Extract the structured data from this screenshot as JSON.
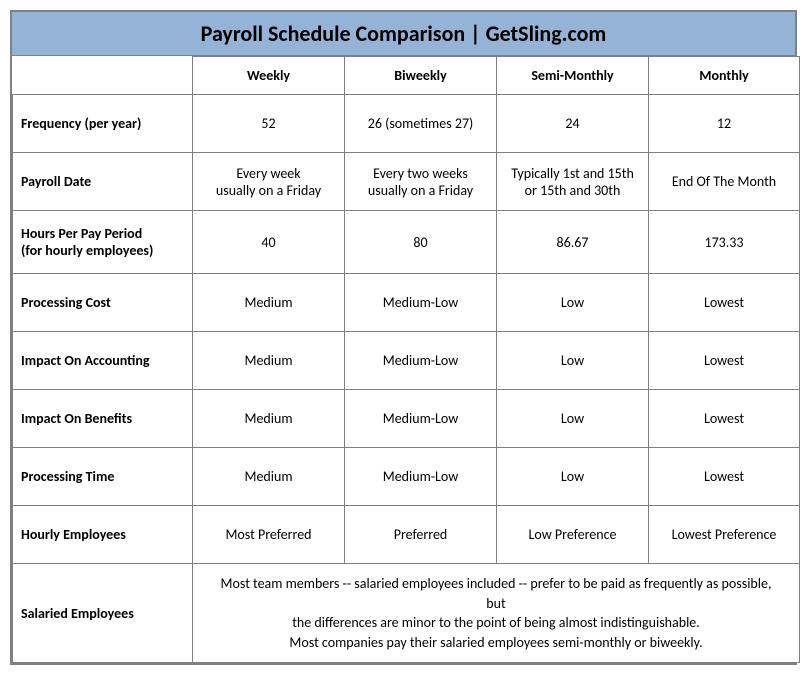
{
  "title": "Payroll Schedule Comparison | GetSling.com",
  "colors": {
    "header_bg": "#95b3d7",
    "border": "#808080",
    "text": "#000000",
    "cell_bg": "#ffffff"
  },
  "columns": [
    "Weekly",
    "Biweekly",
    "Semi-Monthly",
    "Monthly"
  ],
  "rows": [
    {
      "label": "Frequency (per year)",
      "cells": [
        "52",
        "26 (sometimes 27)",
        "24",
        "12"
      ]
    },
    {
      "label": "Payroll Date",
      "cells": [
        "Every week\nusually on a Friday",
        "Every two weeks\nusually on a Friday",
        "Typically 1st and 15th\nor 15th and 30th",
        "End Of The Month"
      ]
    },
    {
      "label": "Hours Per Pay Period\n(for hourly employees)",
      "cells": [
        "40",
        "80",
        "86.67",
        "173.33"
      ]
    },
    {
      "label": "Processing Cost",
      "cells": [
        "Medium",
        "Medium-Low",
        "Low",
        "Lowest"
      ]
    },
    {
      "label": "Impact On Accounting",
      "cells": [
        "Medium",
        "Medium-Low",
        "Low",
        "Lowest"
      ]
    },
    {
      "label": "Impact On Benefits",
      "cells": [
        "Medium",
        "Medium-Low",
        "Low",
        "Lowest"
      ]
    },
    {
      "label": "Processing Time",
      "cells": [
        "Medium",
        "Medium-Low",
        "Low",
        "Lowest"
      ]
    },
    {
      "label": "Hourly Employees",
      "cells": [
        "Most Preferred",
        "Preferred",
        "Low Preference",
        "Lowest Preference"
      ]
    }
  ],
  "footer_row": {
    "label": "Salaried Employees",
    "merged_text": "Most team members -- salaried employees included -- prefer to be paid as frequently as possible, but\nthe differences are minor to the point of being almost indistinguishable.\nMost companies pay their salaried employees semi-monthly or biweekly."
  }
}
